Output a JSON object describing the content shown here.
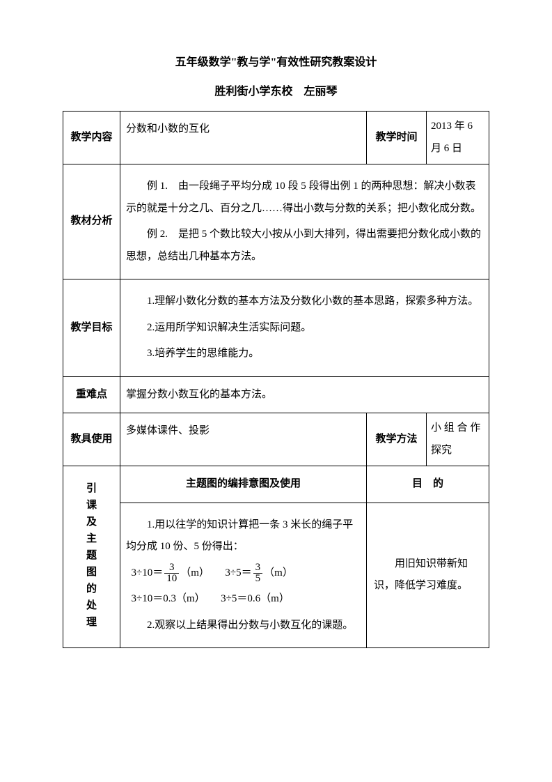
{
  "page": {
    "title1": "五年级数学\"教与学\"有效性研究教案设计",
    "title2": "胜利街小学东校　左丽琴",
    "title_fontsize": 16,
    "body_fontsize": 15,
    "line_height": 2.1,
    "text_color": "#000000",
    "border_color": "#000000",
    "bg_color": "#ffffff"
  },
  "rows": {
    "content": {
      "label": "教学内容",
      "text": "分数和小数的互化",
      "time_label": "教学时间",
      "time_value": "2013 年 6 月 6 日"
    },
    "analysis": {
      "label": "教材分析",
      "p1": "例 1.　由一段绳子平均分成 10 段 5 段得出例 1 的两种思想：解决小数表示的就是十分之几、百分之几……得出小数与分数的关系；把小数化成分数。",
      "p2": "例 2.　是把 5 个数比较大小按从小到大排列，得出需要把分数化成小数的思想，总结出几种基本方法。"
    },
    "goal": {
      "label": "教学目标",
      "p1": "1.理解小数化分数的基本方法及分数化小数的基本思路，探索多种方法。",
      "p2": "2.运用所学知识解决生活实际问题。",
      "p3": "3.培养学生的思维能力。"
    },
    "key": {
      "label": "重难点",
      "text": "掌握分数小数互化的基本方法。"
    },
    "tools": {
      "label": "教具使用",
      "text": "多媒体课件、投影",
      "method_label": "教学方法",
      "method_value": "小 组 合 作探究"
    },
    "intro": {
      "label": "引课及主题图的处理",
      "header_left": "主题图的编排意图及使用",
      "header_right": "目　的",
      "p1": "1.用以往学的知识计算把一条 3 米长的绳子平均分成 10 份、5 份得出：",
      "eq1a": "3÷10＝",
      "eq1a_num": "3",
      "eq1a_den": "10",
      "eq1a_unit": "（m）",
      "eq1b": "3÷5＝",
      "eq1b_num": "3",
      "eq1b_den": "5",
      "eq1b_unit": "（m）",
      "eq2a": "3÷10＝0.3（m）",
      "eq2b": "3÷5＝0.6（m）",
      "p2": "2.观察以上结果得出分数与小数互化的课题。",
      "purpose": "用旧知识带新知识，降低学习难度。"
    }
  }
}
